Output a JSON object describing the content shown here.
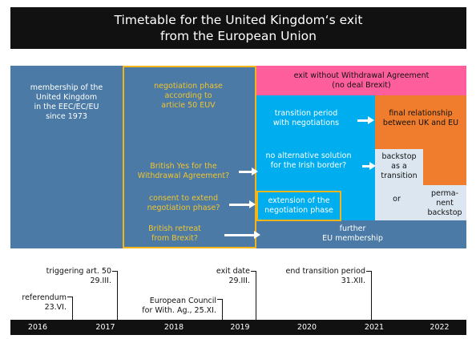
{
  "title": "Timetable for the United Kingdom‘s exit\nfrom the European Union",
  "colors": {
    "membership_blue": "#4a7aa5",
    "transition_cyan": "#00aeef",
    "no_deal_pink": "#ff5e9c",
    "final_orange": "#ef7d2d",
    "backstop_pale": "#dbe6f1",
    "highlight_gold": "#f2b51a",
    "title_black": "#111111"
  },
  "blocks": {
    "membership": "membership of the\nUnited Kingdom\nin the EEC/EC/EU\nsince 1973",
    "negotiation_phase": "negotiation phase\naccording to\narticle 50 EUV",
    "british_yes": "British Yes for the\nWithdrawal Agreement?",
    "consent_extend": "consent to extend\nnegotiation phase?",
    "british_retreat": "British retreat\nfrom Brexit?",
    "no_deal": "exit without Withdrawal Agreement\n(no deal Brexit)",
    "transition_period": "transition period\nwith negotiations",
    "final_relationship": "final relationship\nbetween UK and EU",
    "no_alternative": "no alternative solution\nfor the Irish border?",
    "backstop_transition": "backstop\nas a\ntransition",
    "or": "or",
    "permanent_backstop": "perma-\nnent\nbackstop",
    "extension": "extension of the\nnegotiation phase",
    "further_membership": "further\nEU membership"
  },
  "events": [
    {
      "label": "triggering art. 50\n29.III."
    },
    {
      "label": "referendum\n23.VI."
    },
    {
      "label": "European Council\nfor With. Ag., 25.XI."
    },
    {
      "label": "exit date\n29.III."
    },
    {
      "label": "end transition period\n31.XII."
    }
  ],
  "years": [
    "2016",
    "2017",
    "2018",
    "2019",
    "2020",
    "2021",
    "2022"
  ]
}
